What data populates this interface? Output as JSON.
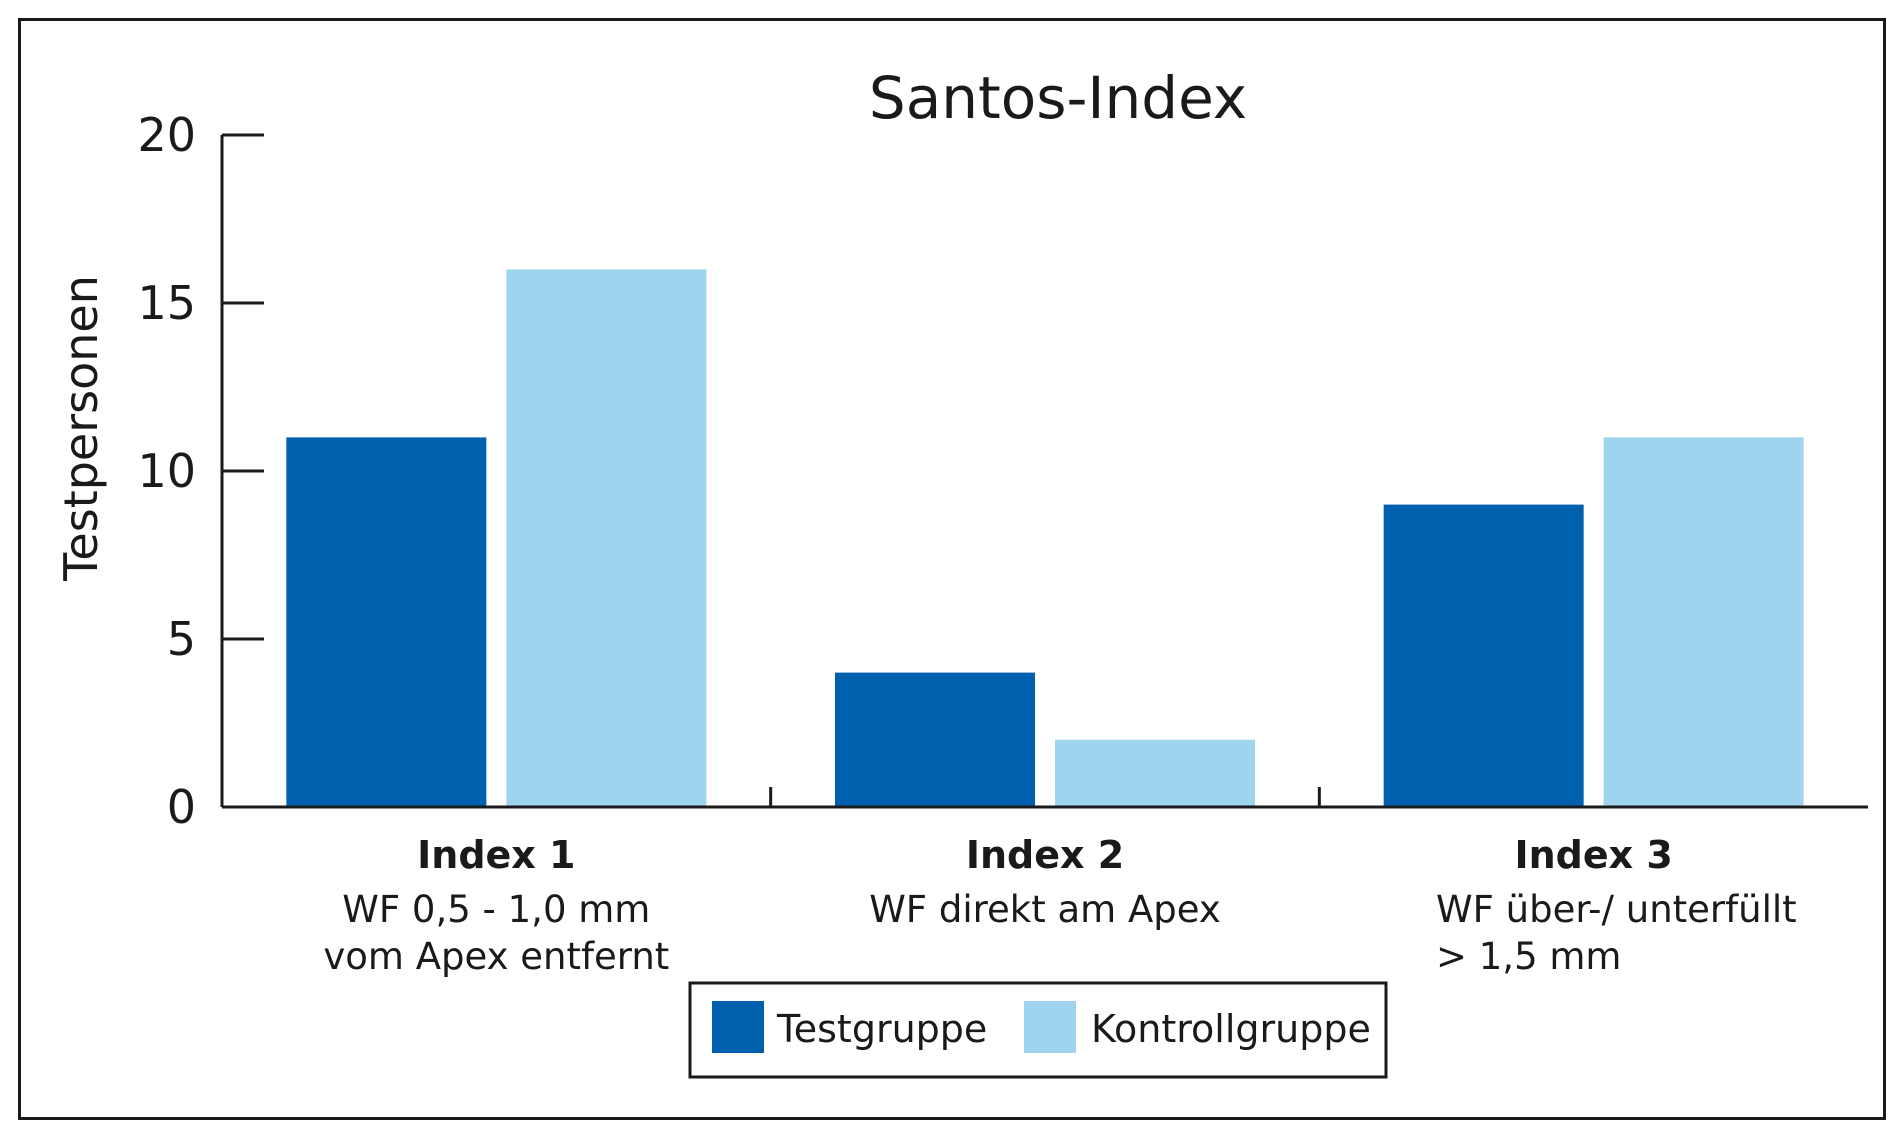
{
  "chart_data": {
    "type": "bar",
    "title": "Santos-Index",
    "ylabel": "Testpersonen",
    "xlabel": "",
    "ylim": [
      0,
      20
    ],
    "yticks": [
      0,
      5,
      10,
      15,
      20
    ],
    "grid": false,
    "legend_position": "bottom-center",
    "categories": [
      {
        "label": "Index 1",
        "description": [
          "WF 0,5 - 1,0 mm",
          "vom Apex entfernt"
        ],
        "align": "center"
      },
      {
        "label": "Index 2",
        "description": [
          "WF direkt am Apex"
        ],
        "align": "center"
      },
      {
        "label": "Index 3",
        "description": [
          "WF über-/ unterfüllt",
          "> 1,5 mm"
        ],
        "align": "left"
      }
    ],
    "series": [
      {
        "name": "Testgruppe",
        "color": "#0060ae",
        "values": [
          11,
          4,
          9
        ]
      },
      {
        "name": "Kontrollgruppe",
        "color": "#9fd4ee",
        "values": [
          16,
          2,
          11
        ]
      }
    ]
  }
}
